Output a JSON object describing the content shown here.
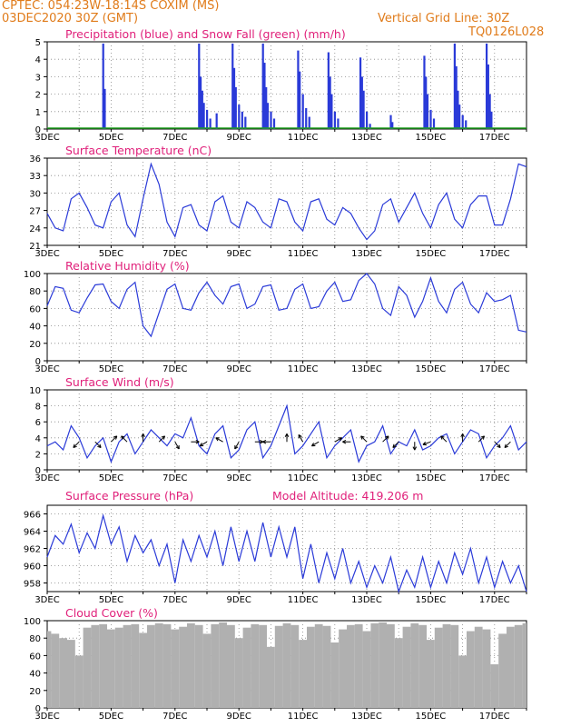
{
  "header": {
    "station": "CPTEC:   054:23W-18:14S   COXIM (MS)",
    "init": "03DEC2020 30Z (GMT)",
    "grid_note": "Vertical Grid Line: 30Z",
    "code": "TQ0126L028"
  },
  "colors": {
    "header": "#e07b1a",
    "title": "#e0207a",
    "line": "#2a3ad8",
    "precip": "#2a3ad8",
    "snow": "#20a020",
    "cloud": "#b0b0b0",
    "wind_arrow": "#000000"
  },
  "x_axis": {
    "start": "03DEC",
    "end": "18DEC",
    "tick_labels": [
      "3DEC",
      "5DEC",
      "7DEC",
      "9DEC",
      "11DEC",
      "13DEC",
      "15DEC",
      "17DEC"
    ],
    "bottom_labels": [
      "3DEC",
      "5DEC",
      "7DEC",
      "9DEC",
      "11DEC",
      "13DEC",
      "15DEC",
      "17DEC"
    ]
  },
  "chart_data": [
    {
      "id": "precip",
      "type": "bar",
      "title": "Precipitation (blue) and Snow Fall (green) (mm/h)",
      "ylim": [
        0,
        5
      ],
      "yticks": [
        "0",
        "1",
        "2",
        "3",
        "4",
        "5"
      ],
      "series": [
        {
          "name": "Precipitation",
          "x": [
            4.75,
            4.8,
            7.75,
            7.8,
            7.85,
            7.9,
            8.0,
            8.1,
            8.3,
            8.8,
            8.85,
            8.9,
            9.0,
            9.1,
            9.2,
            9.75,
            9.8,
            9.85,
            9.9,
            10.0,
            10.1,
            10.85,
            10.9,
            11.0,
            11.1,
            11.2,
            11.8,
            11.85,
            11.9,
            12.0,
            12.1,
            12.8,
            12.85,
            12.9,
            13.0,
            13.1,
            13.75,
            13.8,
            14.8,
            14.85,
            14.9,
            15.0,
            15.1,
            15.75,
            15.8,
            15.85,
            15.9,
            16.0,
            16.1,
            16.75,
            16.8,
            16.85,
            16.9
          ],
          "values": [
            4.9,
            2.3,
            4.9,
            3.0,
            2.2,
            1.5,
            1.1,
            0.6,
            0.9,
            4.9,
            3.5,
            2.4,
            1.4,
            1.0,
            0.7,
            4.9,
            3.8,
            2.4,
            1.5,
            1.0,
            0.6,
            4.5,
            3.3,
            2.0,
            1.2,
            0.7,
            4.4,
            3.0,
            2.0,
            1.0,
            0.6,
            4.1,
            3.0,
            2.2,
            1.0,
            0.3,
            0.8,
            0.4,
            4.2,
            3.0,
            2.0,
            1.1,
            0.6,
            4.9,
            3.6,
            2.2,
            1.4,
            0.8,
            0.5,
            4.9,
            3.7,
            2.0,
            1.0
          ]
        },
        {
          "name": "Snow Fall",
          "values": [
            0
          ]
        }
      ]
    },
    {
      "id": "temperature",
      "type": "line",
      "title": "Surface Temperature (nC)",
      "ylim": [
        21,
        36
      ],
      "yticks": [
        "21",
        "24",
        "27",
        "30",
        "33",
        "36"
      ],
      "x": [
        3.0,
        3.25,
        3.5,
        3.75,
        4.0,
        4.25,
        4.5,
        4.75,
        5.0,
        5.25,
        5.5,
        5.75,
        6.0,
        6.25,
        6.5,
        6.75,
        7.0,
        7.25,
        7.5,
        7.75,
        8.0,
        8.25,
        8.5,
        8.75,
        9.0,
        9.25,
        9.5,
        9.75,
        10.0,
        10.25,
        10.5,
        10.75,
        11.0,
        11.25,
        11.5,
        11.75,
        12.0,
        12.25,
        12.5,
        12.75,
        13.0,
        13.25,
        13.5,
        13.75,
        14.0,
        14.25,
        14.5,
        14.75,
        15.0,
        15.25,
        15.5,
        15.75,
        16.0,
        16.25,
        16.5,
        16.75,
        17.0,
        17.25,
        17.5,
        17.75,
        18.0
      ],
      "values": [
        26.5,
        24.0,
        23.5,
        29.0,
        30.0,
        27.5,
        24.5,
        24.0,
        28.5,
        30.0,
        24.5,
        22.5,
        29.0,
        35.0,
        31.5,
        25.0,
        22.5,
        27.5,
        28.0,
        24.5,
        23.5,
        28.5,
        29.5,
        25.0,
        24.0,
        28.5,
        27.5,
        25.0,
        24.0,
        29.0,
        28.5,
        25.0,
        23.5,
        28.5,
        29.0,
        25.5,
        24.5,
        27.5,
        26.5,
        24.0,
        22.0,
        23.5,
        28.0,
        29.0,
        25.0,
        27.5,
        30.0,
        26.5,
        24.0,
        28.0,
        30.0,
        25.5,
        24.0,
        28.0,
        29.5,
        29.5,
        24.5,
        24.5,
        29.0,
        35.0,
        34.5
      ]
    },
    {
      "id": "humidity",
      "type": "line",
      "title": "Relative Humidity (%)",
      "ylim": [
        0,
        100
      ],
      "yticks": [
        "0",
        "20",
        "40",
        "60",
        "80",
        "100"
      ],
      "x": [
        3.0,
        3.25,
        3.5,
        3.75,
        4.0,
        4.25,
        4.5,
        4.75,
        5.0,
        5.25,
        5.5,
        5.75,
        6.0,
        6.25,
        6.5,
        6.75,
        7.0,
        7.25,
        7.5,
        7.75,
        8.0,
        8.25,
        8.5,
        8.75,
        9.0,
        9.25,
        9.5,
        9.75,
        10.0,
        10.25,
        10.5,
        10.75,
        11.0,
        11.25,
        11.5,
        11.75,
        12.0,
        12.25,
        12.5,
        12.75,
        13.0,
        13.25,
        13.5,
        13.75,
        14.0,
        14.25,
        14.5,
        14.75,
        15.0,
        15.25,
        15.5,
        15.75,
        16.0,
        16.25,
        16.5,
        16.75,
        17.0,
        17.25,
        17.5,
        17.75,
        18.0
      ],
      "values": [
        63,
        85,
        83,
        58,
        55,
        72,
        87,
        88,
        68,
        60,
        82,
        90,
        40,
        28,
        55,
        82,
        88,
        60,
        58,
        78,
        90,
        75,
        65,
        85,
        88,
        60,
        65,
        85,
        87,
        58,
        60,
        82,
        88,
        60,
        62,
        80,
        90,
        68,
        70,
        92,
        100,
        88,
        60,
        52,
        85,
        75,
        50,
        68,
        95,
        68,
        55,
        82,
        90,
        65,
        55,
        78,
        68,
        70,
        75,
        35,
        33
      ]
    },
    {
      "id": "wind",
      "type": "line",
      "title": "Surface Wind (m/s)",
      "ylim": [
        0,
        10
      ],
      "yticks": [
        "0",
        "2",
        "4",
        "6",
        "8",
        "10"
      ],
      "x": [
        3.0,
        3.25,
        3.5,
        3.75,
        4.0,
        4.25,
        4.5,
        4.75,
        5.0,
        5.25,
        5.5,
        5.75,
        6.0,
        6.25,
        6.5,
        6.75,
        7.0,
        7.25,
        7.5,
        7.75,
        8.0,
        8.25,
        8.5,
        8.75,
        9.0,
        9.25,
        9.5,
        9.75,
        10.0,
        10.25,
        10.5,
        10.75,
        11.0,
        11.25,
        11.5,
        11.75,
        12.0,
        12.25,
        12.5,
        12.75,
        13.0,
        13.25,
        13.5,
        13.75,
        14.0,
        14.25,
        14.5,
        14.75,
        15.0,
        15.25,
        15.5,
        15.75,
        16.0,
        16.25,
        16.5,
        16.75,
        17.0,
        17.25,
        17.5,
        17.75,
        18.0
      ],
      "values": [
        3.0,
        3.5,
        2.5,
        5.5,
        4.0,
        1.5,
        3.0,
        4.0,
        1.0,
        3.5,
        4.5,
        2.0,
        3.5,
        5.0,
        4.0,
        3.0,
        4.5,
        4.0,
        6.5,
        3.0,
        2.0,
        4.5,
        5.5,
        1.5,
        2.5,
        5.0,
        6.0,
        1.5,
        3.0,
        5.5,
        8.0,
        2.0,
        3.0,
        4.5,
        6.0,
        1.5,
        3.0,
        4.0,
        5.0,
        1.0,
        3.0,
        3.5,
        5.5,
        2.0,
        3.5,
        3.0,
        5.0,
        2.5,
        3.0,
        4.0,
        4.5,
        2.0,
        3.5,
        5.0,
        4.5,
        1.5,
        3.0,
        4.0,
        5.5,
        2.5,
        3.5
      ],
      "arrows_x": [
        4.0,
        4.5,
        5.0,
        5.5,
        6.0,
        6.5,
        7.0,
        7.5,
        8.0,
        8.5,
        9.0,
        9.5,
        10.0,
        10.5,
        11.0,
        11.5,
        12.0,
        12.5,
        13.0,
        13.5,
        14.0,
        14.5,
        15.0,
        15.5,
        16.0,
        16.5,
        17.0,
        17.5
      ],
      "arrows_deg": [
        225,
        315,
        45,
        135,
        90,
        45,
        300,
        0,
        210,
        150,
        240,
        0,
        180,
        90,
        120,
        210,
        30,
        180,
        135,
        45,
        225,
        270,
        200,
        135,
        90,
        45,
        315,
        225
      ]
    },
    {
      "id": "pressure",
      "type": "line",
      "title": "Surface Pressure (hPa)",
      "annotation": "Model Altitude: 419.206 m",
      "ylim": [
        957,
        967
      ],
      "yticks": [
        "958",
        "960",
        "962",
        "964",
        "966"
      ],
      "x": [
        3.0,
        3.25,
        3.5,
        3.75,
        4.0,
        4.25,
        4.5,
        4.75,
        5.0,
        5.25,
        5.5,
        5.75,
        6.0,
        6.25,
        6.5,
        6.75,
        7.0,
        7.25,
        7.5,
        7.75,
        8.0,
        8.25,
        8.5,
        8.75,
        9.0,
        9.25,
        9.5,
        9.75,
        10.0,
        10.25,
        10.5,
        10.75,
        11.0,
        11.25,
        11.5,
        11.75,
        12.0,
        12.25,
        12.5,
        12.75,
        13.0,
        13.25,
        13.5,
        13.75,
        14.0,
        14.25,
        14.5,
        14.75,
        15.0,
        15.25,
        15.5,
        15.75,
        16.0,
        16.25,
        16.5,
        16.75,
        17.0,
        17.25,
        17.5,
        17.75,
        18.0
      ],
      "values": [
        961.0,
        963.5,
        962.5,
        964.8,
        961.5,
        963.8,
        962.0,
        965.8,
        962.5,
        964.5,
        960.5,
        963.5,
        961.5,
        963.0,
        960.0,
        962.5,
        958.0,
        963.0,
        960.5,
        963.5,
        961.0,
        964.0,
        960.0,
        964.5,
        960.5,
        964.0,
        960.5,
        965.0,
        961.0,
        964.5,
        961.0,
        964.5,
        958.5,
        962.5,
        958.0,
        961.5,
        958.5,
        962.0,
        958.0,
        960.5,
        957.5,
        960.0,
        958.0,
        961.0,
        957.0,
        959.5,
        957.5,
        961.0,
        957.5,
        960.5,
        958.0,
        961.5,
        959.0,
        962.0,
        958.0,
        961.0,
        957.5,
        960.5,
        958.0,
        960.0,
        957.0
      ]
    },
    {
      "id": "cloud",
      "type": "area",
      "title": "Cloud Cover (%)",
      "ylim": [
        0,
        100
      ],
      "yticks": [
        "0",
        "20",
        "40",
        "60",
        "80",
        "100"
      ],
      "x": [
        3.0,
        3.25,
        3.5,
        3.75,
        4.0,
        4.25,
        4.5,
        4.75,
        5.0,
        5.25,
        5.5,
        5.75,
        6.0,
        6.25,
        6.5,
        6.75,
        7.0,
        7.25,
        7.5,
        7.75,
        8.0,
        8.25,
        8.5,
        8.75,
        9.0,
        9.25,
        9.5,
        9.75,
        10.0,
        10.25,
        10.5,
        10.75,
        11.0,
        11.25,
        11.5,
        11.75,
        12.0,
        12.25,
        12.5,
        12.75,
        13.0,
        13.25,
        13.5,
        13.75,
        14.0,
        14.25,
        14.5,
        14.75,
        15.0,
        15.25,
        15.5,
        15.75,
        16.0,
        16.25,
        16.5,
        16.75,
        17.0,
        17.25,
        17.5,
        17.75,
        18.0
      ],
      "values": [
        88,
        85,
        80,
        78,
        60,
        92,
        95,
        96,
        90,
        92,
        95,
        96,
        86,
        95,
        97,
        96,
        90,
        93,
        97,
        95,
        85,
        96,
        98,
        95,
        80,
        92,
        96,
        95,
        70,
        94,
        97,
        95,
        78,
        93,
        96,
        94,
        75,
        90,
        95,
        96,
        88,
        97,
        98,
        96,
        80,
        93,
        97,
        95,
        78,
        92,
        96,
        95,
        60,
        88,
        93,
        90,
        50,
        85,
        93,
        95,
        97
      ]
    }
  ]
}
